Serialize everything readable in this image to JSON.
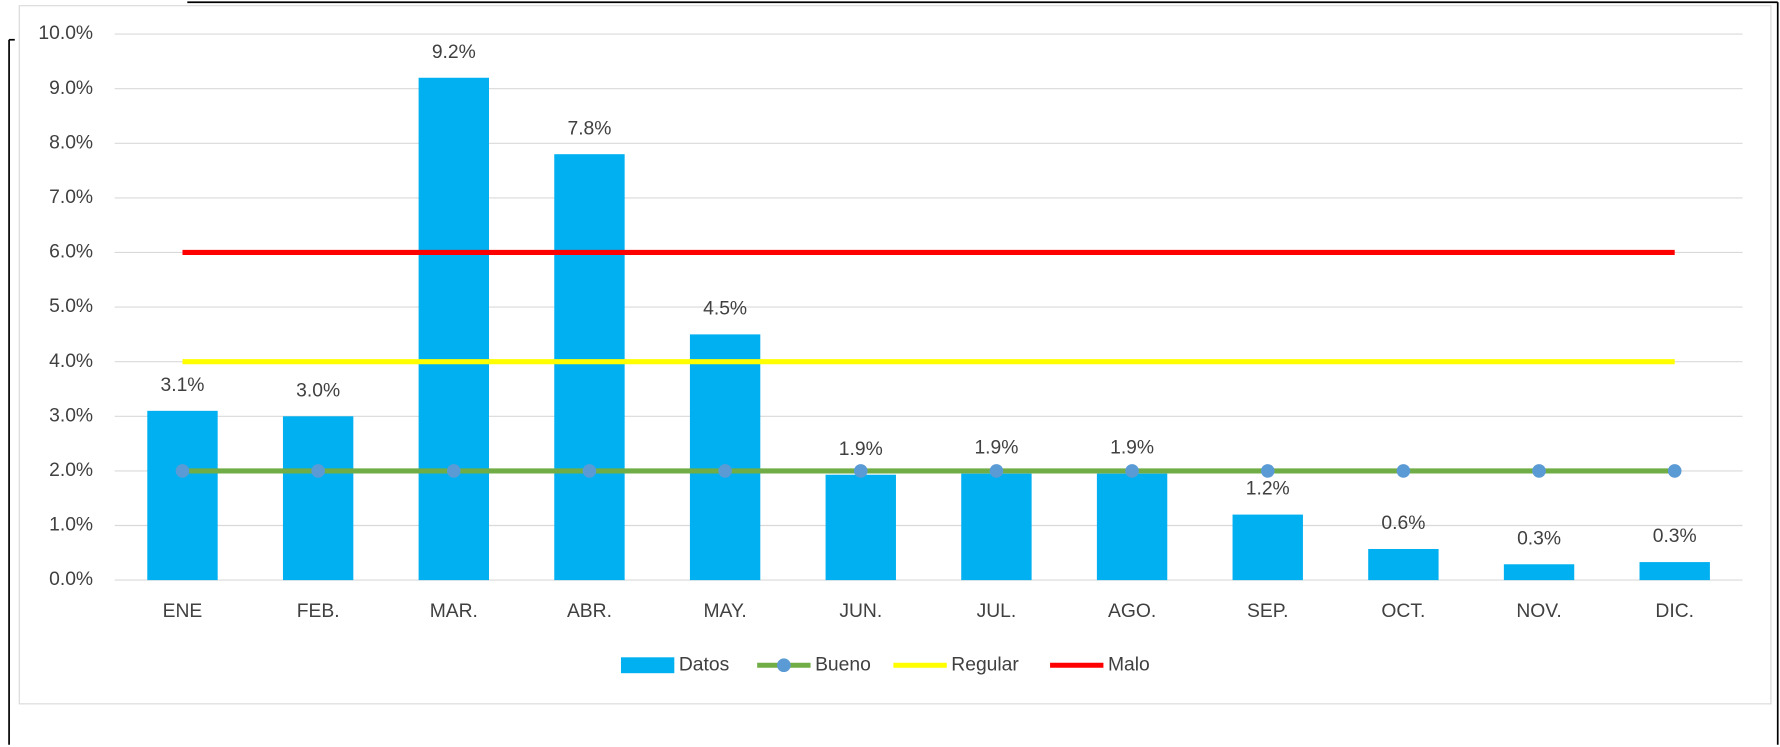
{
  "chart_data": {
    "type": "bar",
    "categories": [
      "ENE",
      "FEB.",
      "MAR.",
      "ABR.",
      "MAY.",
      "JUN.",
      "JUL.",
      "AGO.",
      "SEP.",
      "OCT.",
      "NOV.",
      "DIC."
    ],
    "series": [
      {
        "name": "Datos",
        "type": "bar",
        "color": "#00b0f0",
        "values": [
          3.1,
          3.0,
          9.2,
          7.8,
          4.5,
          1.93,
          1.95,
          1.95,
          1.2,
          0.57,
          0.29,
          0.33
        ],
        "value_labels": [
          "3.1%",
          "3.0%",
          "9.2%",
          "7.8%",
          "4.5%",
          "1.9%",
          "1.9%",
          "1.9%",
          "1.2%",
          "0.6%",
          "0.3%",
          "0.3%"
        ]
      },
      {
        "name": "Bueno",
        "type": "line",
        "color": "#70ad47",
        "marker_color": "#5b9bd5",
        "values": [
          2,
          2,
          2,
          2,
          2,
          2,
          2,
          2,
          2,
          2,
          2,
          2
        ]
      },
      {
        "name": "Regular",
        "type": "line",
        "color": "#ffff00",
        "values": [
          4,
          4,
          4,
          4,
          4,
          4,
          4,
          4,
          4,
          4,
          4,
          4
        ]
      },
      {
        "name": "Malo",
        "type": "line",
        "color": "#ff0000",
        "values": [
          6,
          6,
          6,
          6,
          6,
          6,
          6,
          6,
          6,
          6,
          6,
          6
        ]
      }
    ],
    "ylim": [
      0,
      10
    ],
    "yticks": [
      {
        "value": 0,
        "label": "0.0%"
      },
      {
        "value": 1,
        "label": "1.0%"
      },
      {
        "value": 2,
        "label": "2.0%"
      },
      {
        "value": 3,
        "label": "3.0%"
      },
      {
        "value": 4,
        "label": "4.0%"
      },
      {
        "value": 5,
        "label": "5.0%"
      },
      {
        "value": 6,
        "label": "6.0%"
      },
      {
        "value": 7,
        "label": "7.0%"
      },
      {
        "value": 8,
        "label": "8.0%"
      },
      {
        "value": 9,
        "label": "9.0%"
      },
      {
        "value": 10,
        "label": "10.0%"
      }
    ],
    "grid": true,
    "legend": "bottom"
  }
}
